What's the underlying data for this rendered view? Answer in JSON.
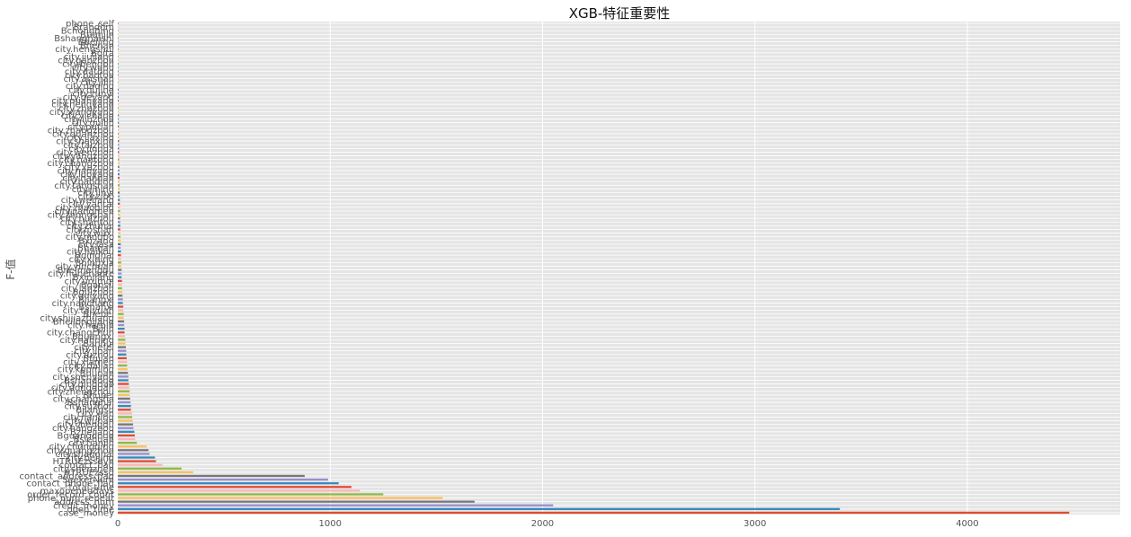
{
  "chart_data": {
    "type": "bar",
    "orientation": "horizontal",
    "title": "XGB-特征重要性",
    "xlabel": "",
    "ylabel": "F-值",
    "xlim": [
      0,
      4720
    ],
    "xticks": [
      0,
      1000,
      2000,
      3000,
      4000
    ],
    "grid": true,
    "legend": "none",
    "colors": [
      "#E24A33",
      "#348ABD",
      "#988ED5",
      "#777777",
      "#FBC15E",
      "#8EBA42",
      "#FFB5B8"
    ],
    "background": "#E5E5E5",
    "categories": [
      "case_money",
      "open_time",
      "credit_money",
      "address_num",
      "phone_num_repeat",
      "order_record_count",
      "maxopeneddays",
      "total_time",
      "contact_phone_flag",
      "SeekerNum",
      "contact_address_flag",
      "HTRUEzssd",
      "city.shenzhen",
      "contact_flag",
      "HTRUEzssdyh",
      "city.beijing",
      "city.shanghai",
      "city.guangzhou",
      "city.chongqing",
      "city.tianjin",
      "Bsichuan",
      "Bguangdong",
      "Bzhejiang",
      "city.hangzhou",
      "city.chengdu",
      "city.wuhan",
      "city.nanjing",
      "city.xian",
      "Bjiangsu",
      "city.suzhou",
      "Bshanghai",
      "city.changsha",
      "Bhubei",
      "city.zhengzhou",
      "city.dongguan",
      "city.qingdao",
      "Bshandong",
      "city.shenyang",
      "Bhunan",
      "city.kunming",
      "city.dalian",
      "city.xiamen",
      "Bfujian",
      "city.fuzhou",
      "city.jinan",
      "city.hefei",
      "Banhui",
      "city.nanning",
      "Bguangxi",
      "city.changchun",
      "Bjilin",
      "city.harbin",
      "Bheilongjiang",
      "city.shijiazhuang",
      "Bhebei",
      "city.taiyuan",
      "Bshanxi",
      "city.nanchang",
      "Bjiangxi",
      "city.guiyang",
      "Bguizhou",
      "city.lanzhou",
      "Bgansu",
      "city.urumqi",
      "Bxinjiang",
      "city.huhehaote",
      "Bneimenggu",
      "city.yinchuan",
      "Bningxia",
      "city.xining",
      "Bqinghai",
      "city.haikou",
      "Bhainan",
      "city.lasa",
      "Bxizang",
      "city.ningbo",
      "city.wuxi",
      "city.foshan",
      "city.zhuhai",
      "city.shantou",
      "city.huizhou",
      "city.zhongshan",
      "city.jiangmen",
      "city.zhaoqing",
      "city.yantai",
      "city.weifang",
      "city.zibo",
      "city.linyi",
      "city.jining",
      "city.tangshan",
      "city.baoding",
      "city.handan",
      "city.luoyang",
      "city.nanyang",
      "city.xuzhou",
      "city.changzhou",
      "city.nantong",
      "city.yangzhou",
      "city.wenzhou",
      "city.jinhua",
      "city.taizhou",
      "city.shaoxing",
      "city.jiaxing",
      "city.quanzhou",
      "city.zhangzhou",
      "city.putian",
      "city.guilin",
      "city.liuzhou",
      "city.yichang",
      "city.xiangyang",
      "city.zhuzhou",
      "city.hengyang",
      "city.mianyang",
      "city.deyang",
      "city.zunyi",
      "city.qujing",
      "city.daqing",
      "city.jilin",
      "city.anshan",
      "city.baotou",
      "city.datong",
      "city.wuhu",
      "city.bengbu",
      "city.ganzhou",
      "city.jiujiang",
      "Bqita",
      "city.hengshui",
      "Bhenan",
      "Bbeijing",
      "Bshanghaishi",
      "Btianjin",
      "Bchongqing",
      "Brandom",
      "phone_self"
    ],
    "values": [
      4480,
      3400,
      2050,
      1680,
      1530,
      1250,
      1140,
      1100,
      1040,
      990,
      880,
      355,
      300,
      210,
      180,
      175,
      150,
      145,
      135,
      90,
      82,
      80,
      78,
      74,
      72,
      70,
      68,
      68,
      62,
      62,
      60,
      58,
      56,
      56,
      54,
      52,
      50,
      50,
      48,
      46,
      44,
      44,
      42,
      40,
      40,
      38,
      36,
      36,
      34,
      32,
      32,
      30,
      30,
      28,
      28,
      26,
      26,
      24,
      24,
      22,
      22,
      20,
      20,
      20,
      18,
      18,
      18,
      16,
      16,
      16,
      15,
      15,
      14,
      14,
      14,
      13,
      13,
      12,
      12,
      12,
      11,
      11,
      11,
      10,
      10,
      10,
      9,
      9,
      9,
      9,
      8,
      8,
      8,
      8,
      7,
      7,
      7,
      7,
      6,
      6,
      6,
      6,
      6,
      5,
      5,
      5,
      5,
      5,
      5,
      4,
      4,
      4,
      4,
      4,
      4,
      4,
      3,
      3,
      3,
      3,
      3,
      3,
      3,
      3,
      2,
      2,
      2,
      2,
      2,
      2,
      2,
      2,
      1,
      1
    ]
  }
}
